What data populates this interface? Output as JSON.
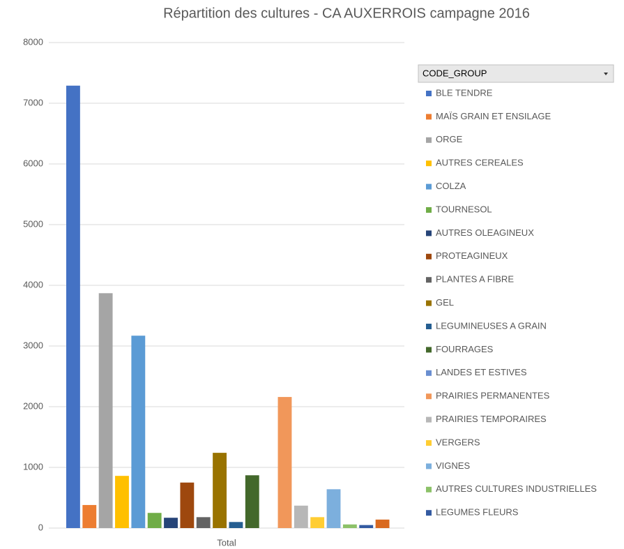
{
  "chart_data": {
    "type": "bar",
    "title": "Répartition des cultures - CA AUXERROIS campagne 2016",
    "field_button": "CODE_GROUP",
    "categories": [
      "Total"
    ],
    "ylim": [
      0,
      8000
    ],
    "yticks": [
      0,
      1000,
      2000,
      3000,
      4000,
      5000,
      6000,
      7000,
      8000
    ],
    "grid": true,
    "legend": "right",
    "series": [
      {
        "name": "BLE TENDRE",
        "color": "#4472c4",
        "values": [
          7290
        ]
      },
      {
        "name": "MAÏS GRAIN ET ENSILAGE",
        "color": "#ed7d31",
        "values": [
          380
        ]
      },
      {
        "name": "ORGE",
        "color": "#a5a5a5",
        "values": [
          3870
        ]
      },
      {
        "name": "AUTRES CEREALES",
        "color": "#ffc000",
        "values": [
          860
        ]
      },
      {
        "name": "COLZA",
        "color": "#5b9bd5",
        "values": [
          3170
        ]
      },
      {
        "name": "TOURNESOL",
        "color": "#70ad47",
        "values": [
          250
        ]
      },
      {
        "name": "AUTRES OLEAGINEUX",
        "color": "#264478",
        "values": [
          170
        ]
      },
      {
        "name": "PROTEAGINEUX",
        "color": "#9e480e",
        "values": [
          750
        ]
      },
      {
        "name": "PLANTES A FIBRE",
        "color": "#636363",
        "values": [
          180
        ]
      },
      {
        "name": "GEL",
        "color": "#997300",
        "values": [
          1240
        ]
      },
      {
        "name": "LEGUMINEUSES A GRAIN",
        "color": "#255e91",
        "values": [
          100
        ]
      },
      {
        "name": "FOURRAGES",
        "color": "#43682b",
        "values": [
          870
        ]
      },
      {
        "name": "LANDES ET ESTIVES",
        "color": "#698ed0",
        "values": [
          0
        ]
      },
      {
        "name": "PRAIRIES PERMANENTES",
        "color": "#f1975a",
        "values": [
          2160
        ]
      },
      {
        "name": "PRAIRIES TEMPORAIRES",
        "color": "#b7b7b7",
        "values": [
          370
        ]
      },
      {
        "name": "VERGERS",
        "color": "#ffcd33",
        "values": [
          180
        ]
      },
      {
        "name": "VIGNES",
        "color": "#7cafdd",
        "values": [
          640
        ]
      },
      {
        "name": "AUTRES CULTURES INDUSTRIELLES",
        "color": "#8cc168",
        "values": [
          60
        ]
      },
      {
        "name": "LEGUMES FLEURS",
        "color": "#335aa1",
        "values": [
          50
        ]
      },
      {
        "name": null,
        "color": "#d9691f",
        "values": [
          140
        ]
      }
    ]
  }
}
